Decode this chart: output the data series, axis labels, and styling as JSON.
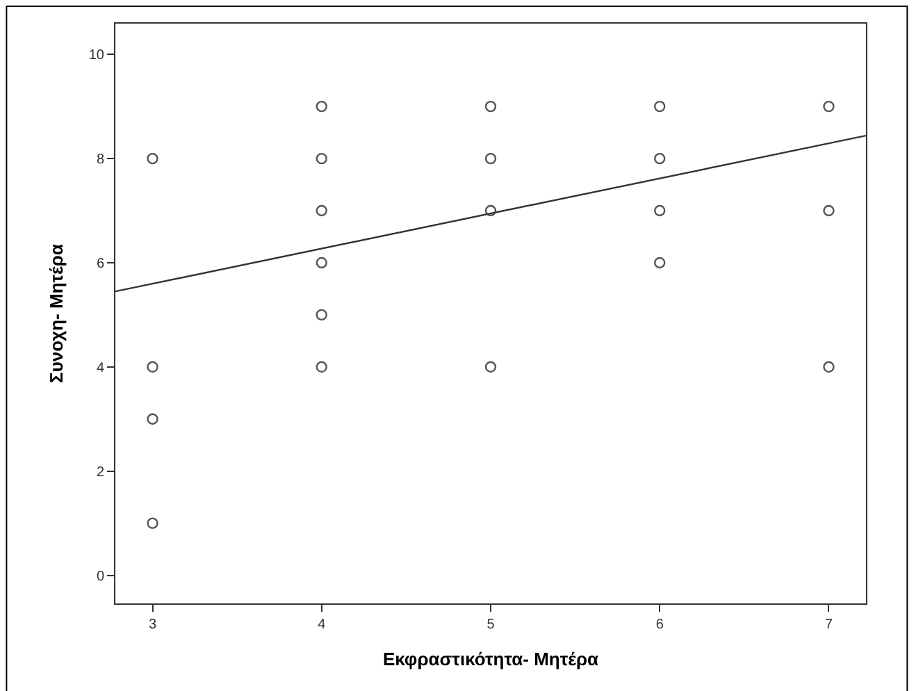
{
  "chart_data": {
    "type": "scatter",
    "xlabel": "Εκφραστικότητα- Μητέρα",
    "ylabel": "Συνοχη- Μητέρα",
    "series": [
      {
        "color": "#555555",
        "marker": "circle",
        "x": [
          3,
          3,
          3,
          3,
          4,
          4,
          4,
          4,
          4,
          4,
          5,
          5,
          5,
          5,
          6,
          6,
          6,
          6,
          7,
          7,
          7
        ],
        "values": [
          8,
          4,
          3,
          1,
          9,
          8,
          7,
          6,
          5,
          4,
          9,
          8,
          7,
          4,
          9,
          8,
          7,
          6,
          9,
          7,
          4
        ]
      },
      {
        "type": "line",
        "color": "#333333",
        "marker": "none",
        "x": [
          2.78,
          7.22
        ],
        "values": [
          5.45,
          8.44
        ]
      }
    ],
    "xlim": [
      2.78,
      7.22
    ],
    "xticks": [
      3,
      4,
      5,
      6,
      7
    ],
    "ylim": [
      -0.54,
      10.59
    ],
    "yticks": [
      0,
      2,
      4,
      6,
      8,
      10
    ],
    "grid": false
  }
}
